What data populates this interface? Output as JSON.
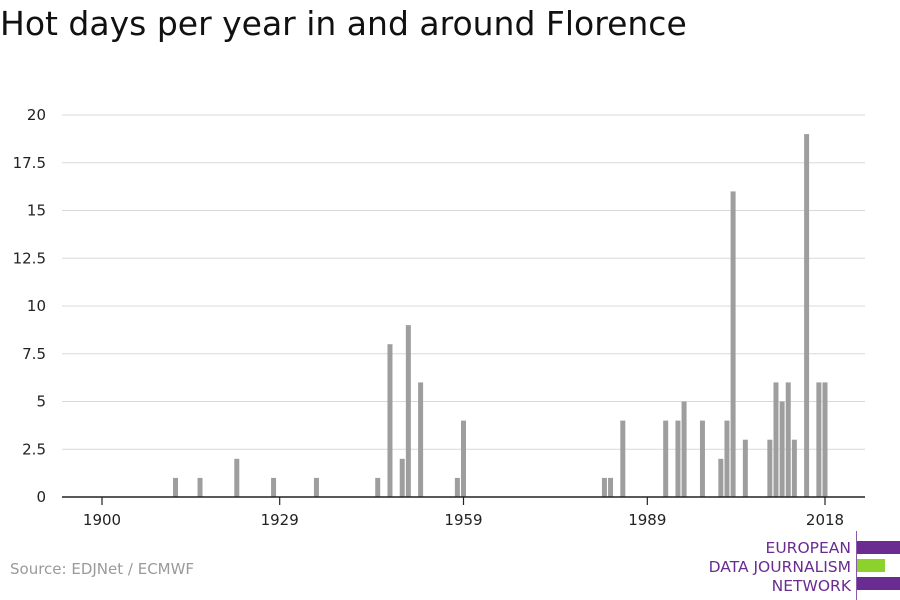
{
  "title": "Hot days per year in and around Florence",
  "source": "Source: EDJNet / ECMWF",
  "logo": {
    "lines": [
      "EUROPEAN",
      "DATA JOURNALISM",
      "NETWORK"
    ],
    "colors": {
      "purple": "#6a2c91",
      "green": "#8dd12c"
    }
  },
  "colors": {
    "bar": "#9e9e9e",
    "grid": "#d9d9d9",
    "axis": "#222222"
  },
  "chart_data": {
    "type": "bar",
    "title": "Hot days per year in and around Florence",
    "xlabel": "",
    "ylabel": "",
    "xlim": [
      1900,
      2018
    ],
    "ylim": [
      0,
      20
    ],
    "x_ticks": [
      1900,
      1929,
      1959,
      1989,
      2018
    ],
    "y_ticks": [
      0,
      2.5,
      5,
      7.5,
      10,
      12.5,
      15,
      17.5,
      20
    ],
    "y_tick_labels": [
      "0",
      "2.5",
      "5",
      "7.5",
      "10",
      "12.5",
      "15",
      "17.5",
      "20"
    ],
    "grid": true,
    "x": [
      1912,
      1916,
      1922,
      1928,
      1935,
      1945,
      1947,
      1949,
      1950,
      1952,
      1958,
      1959,
      1982,
      1983,
      1985,
      1992,
      1994,
      1995,
      1998,
      2001,
      2002,
      2003,
      2005,
      2009,
      2010,
      2011,
      2012,
      2013,
      2015,
      2017,
      2018
    ],
    "values": [
      1,
      1,
      2,
      1,
      1,
      1,
      8,
      2,
      9,
      6,
      1,
      4,
      1,
      1,
      4,
      4,
      4,
      5,
      4,
      2,
      4,
      16,
      3,
      3,
      6,
      5,
      6,
      3,
      19,
      6,
      6
    ]
  }
}
